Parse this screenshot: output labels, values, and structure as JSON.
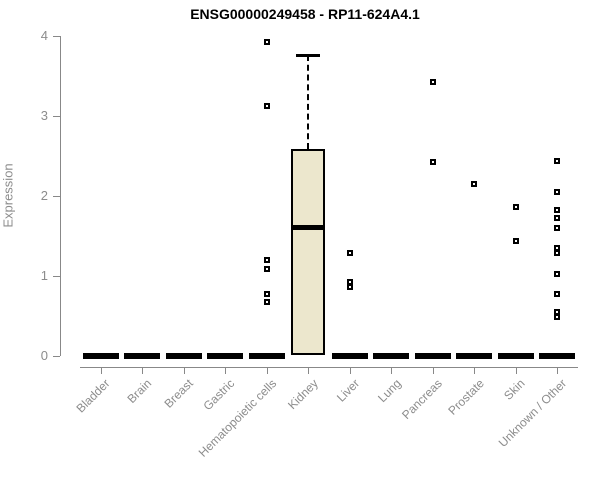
{
  "title": "ENSG00000249458 - RP11-624A4.1",
  "y_axis": {
    "label": "Expression",
    "ticks": [
      "0",
      "1",
      "2",
      "3",
      "4"
    ]
  },
  "colors": {
    "box_fill": "#ECE7CD",
    "box_border": "#000000",
    "axis": "#888888",
    "axis_text": "#8c8c8c",
    "title_text": "#000000"
  },
  "chart_data": {
    "type": "boxplot",
    "title": "ENSG00000249458 - RP11-624A4.1",
    "xlabel": "",
    "ylabel": "Expression",
    "ylim": [
      0,
      4
    ],
    "y_ticks": [
      0,
      1,
      2,
      3,
      4
    ],
    "grid": false,
    "legend": "none",
    "categories": [
      "Bladder",
      "Brain",
      "Breast",
      "Gastric",
      "Hematopoietic cells",
      "Kidney",
      "Liver",
      "Lung",
      "Pancreas",
      "Prostate",
      "Skin",
      "Unknown / Other"
    ],
    "boxes": [
      {
        "category": "Bladder",
        "q1": 0,
        "median": 0,
        "q3": 0,
        "whisker_low": 0,
        "whisker_high": 0,
        "outliers": []
      },
      {
        "category": "Brain",
        "q1": 0,
        "median": 0,
        "q3": 0,
        "whisker_low": 0,
        "whisker_high": 0,
        "outliers": []
      },
      {
        "category": "Breast",
        "q1": 0,
        "median": 0,
        "q3": 0,
        "whisker_low": 0,
        "whisker_high": 0,
        "outliers": []
      },
      {
        "category": "Gastric",
        "q1": 0,
        "median": 0,
        "q3": 0,
        "whisker_low": 0,
        "whisker_high": 0,
        "outliers": []
      },
      {
        "category": "Hematopoietic cells",
        "q1": 0,
        "median": 0,
        "q3": 0,
        "whisker_low": 0,
        "whisker_high": 0,
        "outliers": [
          3.92,
          3.13,
          1.2,
          1.09,
          0.78,
          0.67
        ]
      },
      {
        "category": "Kidney",
        "q1": 0.01,
        "median": 1.61,
        "q3": 2.59,
        "whisker_low": 0.01,
        "whisker_high": 3.76,
        "outliers": []
      },
      {
        "category": "Liver",
        "q1": 0,
        "median": 0,
        "q3": 0,
        "whisker_low": 0,
        "whisker_high": 0,
        "outliers": [
          1.29,
          0.93,
          0.86
        ]
      },
      {
        "category": "Lung",
        "q1": 0,
        "median": 0,
        "q3": 0,
        "whisker_low": 0,
        "whisker_high": 0,
        "outliers": []
      },
      {
        "category": "Pancreas",
        "q1": 0,
        "median": 0,
        "q3": 0,
        "whisker_low": 0,
        "whisker_high": 0,
        "outliers": [
          3.43,
          2.42
        ]
      },
      {
        "category": "Prostate",
        "q1": 0,
        "median": 0,
        "q3": 0,
        "whisker_low": 0,
        "whisker_high": 0,
        "outliers": [
          2.15
        ]
      },
      {
        "category": "Skin",
        "q1": 0,
        "median": 0,
        "q3": 0,
        "whisker_low": 0,
        "whisker_high": 0,
        "outliers": [
          1.86,
          1.44
        ]
      },
      {
        "category": "Unknown / Other",
        "q1": 0,
        "median": 0,
        "q3": 0,
        "whisker_low": 0,
        "whisker_high": 0,
        "outliers": [
          2.44,
          2.05,
          1.83,
          1.72,
          1.6,
          1.35,
          1.29,
          1.03,
          0.78,
          0.55,
          0.49
        ]
      }
    ]
  }
}
